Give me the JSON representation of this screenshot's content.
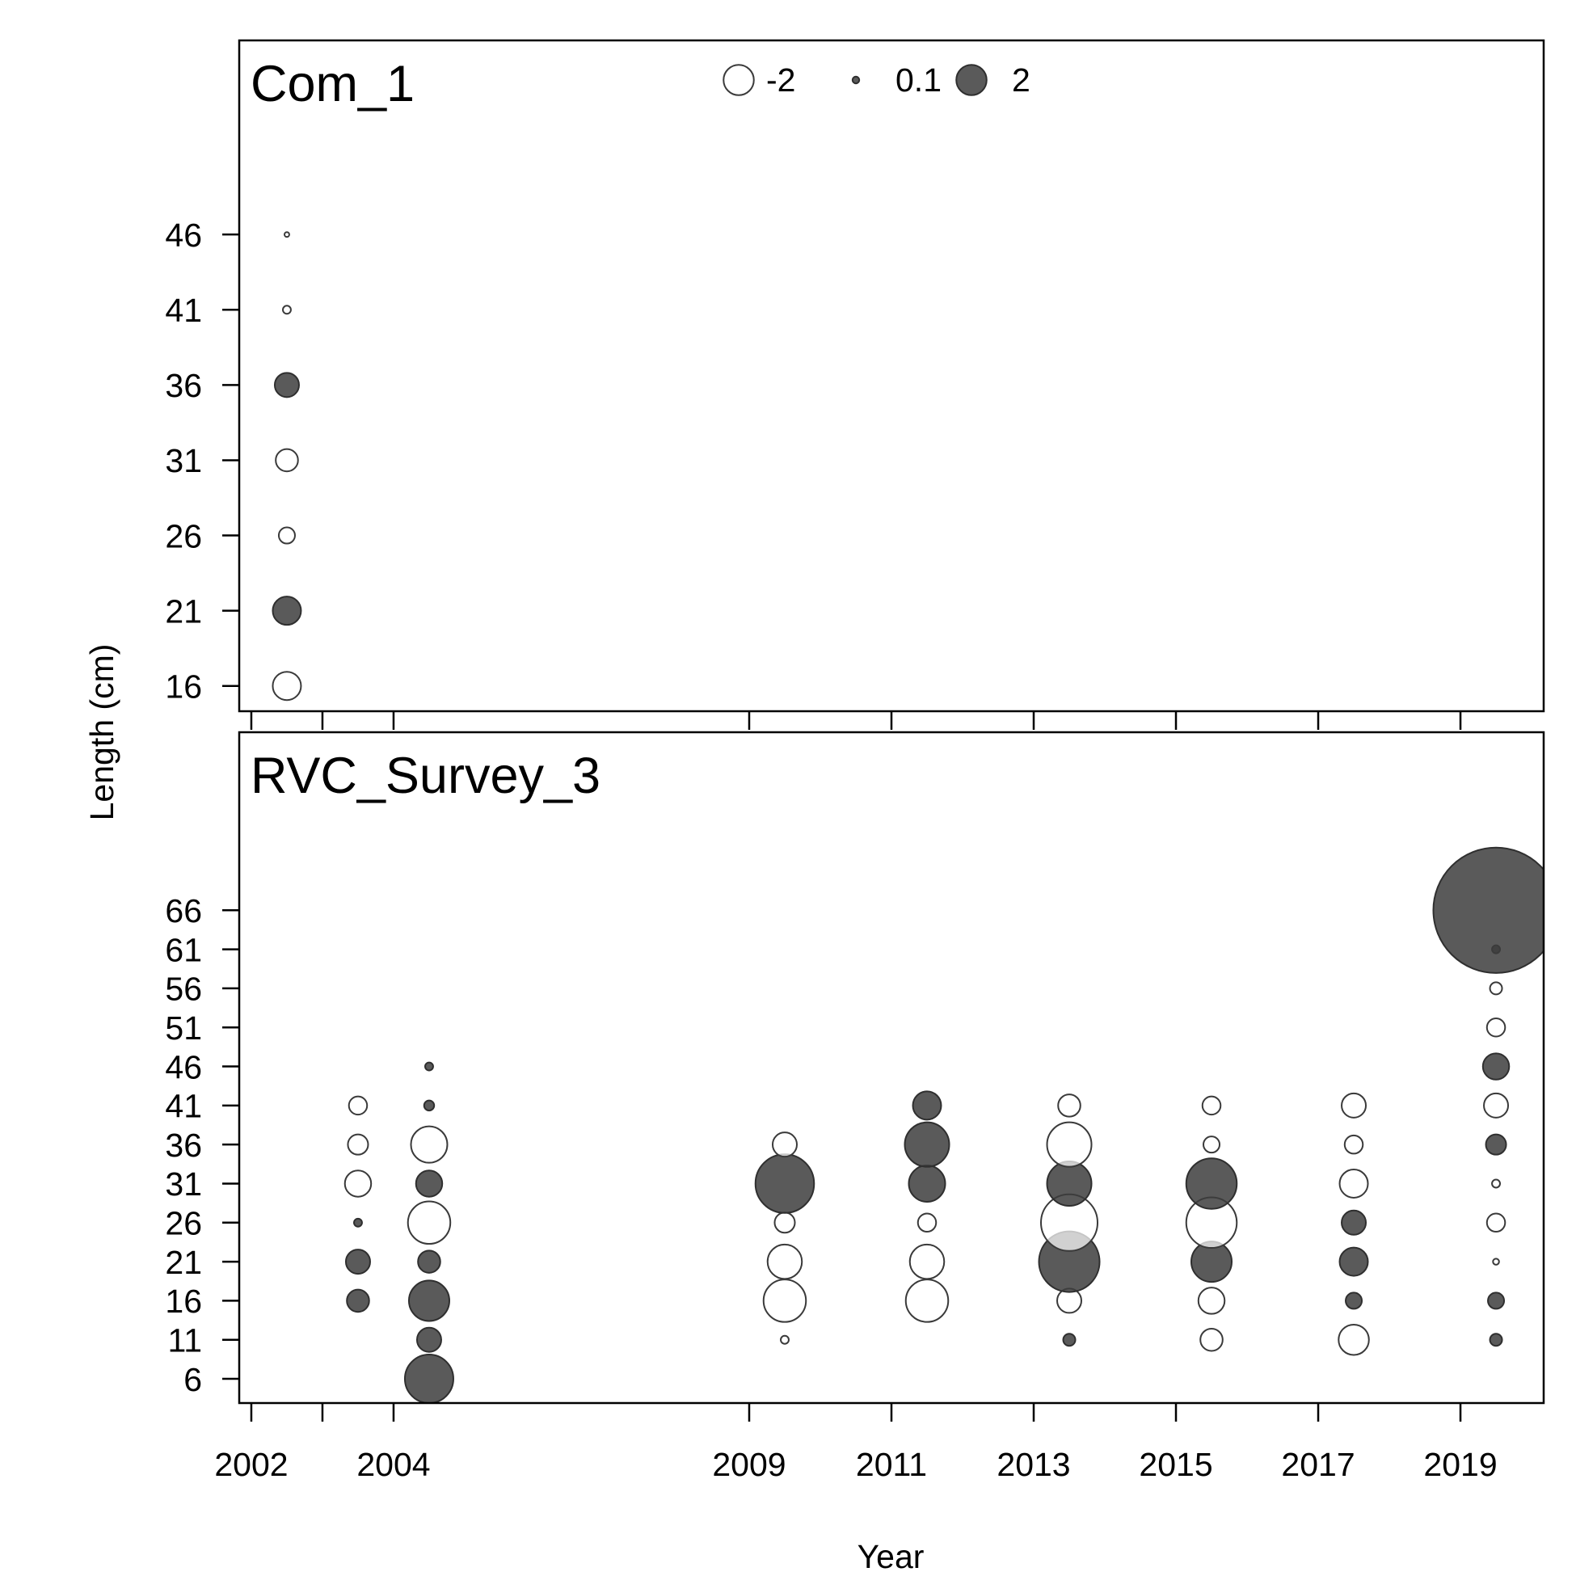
{
  "chart_data": {
    "type": "scatter",
    "subtype": "bubble",
    "xlabel": "Year",
    "ylabel": "Length (cm)",
    "xlim": [
      2001.83,
      2020.17
    ],
    "grid": false,
    "x_ticks": [
      {
        "value": 2002,
        "label": "2002"
      },
      {
        "value": 2003,
        "label": null
      },
      {
        "value": 2004,
        "label": "2004"
      },
      {
        "value": 2009,
        "label": "2009"
      },
      {
        "value": 2011,
        "label": "2011"
      },
      {
        "value": 2013,
        "label": "2013"
      },
      {
        "value": 2015,
        "label": "2015"
      },
      {
        "value": 2017,
        "label": "2017"
      },
      {
        "value": 2019,
        "label": "2019"
      }
    ],
    "legend": {
      "placement": "top-center",
      "entries": [
        {
          "value": -2,
          "label": "-2"
        },
        {
          "value": 0.1,
          "label": "0.1"
        },
        {
          "value": 2,
          "label": "2"
        }
      ]
    },
    "colors": {
      "negative_fill": "#ffffff",
      "positive_fill": "#3d3d3d",
      "frame": "#000000"
    },
    "panels": [
      {
        "title": "Com_1",
        "ylim": [
          14.32,
          58.9
        ],
        "y_ticks": [
          16,
          21,
          26,
          31,
          36,
          41,
          46
        ],
        "points": [
          {
            "x": 2002.5,
            "y": 16,
            "v": -1.74
          },
          {
            "x": 2002.5,
            "y": 21,
            "v": 1.74
          },
          {
            "x": 2002.5,
            "y": 26,
            "v": -0.57
          },
          {
            "x": 2002.5,
            "y": 31,
            "v": -1.08
          },
          {
            "x": 2002.5,
            "y": 36,
            "v": 1.28
          },
          {
            "x": 2002.5,
            "y": 41,
            "v": -0.14
          },
          {
            "x": 2002.5,
            "y": 46,
            "v": -0.05
          }
        ]
      },
      {
        "title": "RVC_Survey_3",
        "ylim": [
          2.9,
          88.8
        ],
        "y_ticks": [
          6,
          11,
          16,
          21,
          26,
          31,
          36,
          41,
          46,
          51,
          56,
          61,
          66
        ],
        "points": [
          {
            "x": 2003.5,
            "y": 16,
            "v": 1.08
          },
          {
            "x": 2003.5,
            "y": 21,
            "v": 1.28
          },
          {
            "x": 2003.5,
            "y": 26,
            "v": 0.14
          },
          {
            "x": 2003.5,
            "y": 31,
            "v": -1.5
          },
          {
            "x": 2003.5,
            "y": 36,
            "v": -0.89
          },
          {
            "x": 2003.5,
            "y": 41,
            "v": -0.72
          },
          {
            "x": 2004.5,
            "y": 6,
            "v": 5.12
          },
          {
            "x": 2004.5,
            "y": 11,
            "v": 1.28
          },
          {
            "x": 2004.5,
            "y": 16,
            "v": 3.56
          },
          {
            "x": 2004.5,
            "y": 21,
            "v": 1.08
          },
          {
            "x": 2004.5,
            "y": 26,
            "v": -3.92
          },
          {
            "x": 2004.5,
            "y": 31,
            "v": 1.5
          },
          {
            "x": 2004.5,
            "y": 36,
            "v": -2.88
          },
          {
            "x": 2004.5,
            "y": 41,
            "v": 0.22
          },
          {
            "x": 2004.5,
            "y": 46,
            "v": 0.14
          },
          {
            "x": 2009.5,
            "y": 11,
            "v": -0.14
          },
          {
            "x": 2009.5,
            "y": 16,
            "v": -3.92
          },
          {
            "x": 2009.5,
            "y": 21,
            "v": -2.57
          },
          {
            "x": 2009.5,
            "y": 26,
            "v": -0.89
          },
          {
            "x": 2009.5,
            "y": 31,
            "v": 7.48
          },
          {
            "x": 2009.5,
            "y": 36,
            "v": -1.28
          },
          {
            "x": 2011.5,
            "y": 16,
            "v": -3.92
          },
          {
            "x": 2011.5,
            "y": 21,
            "v": -2.57
          },
          {
            "x": 2011.5,
            "y": 26,
            "v": -0.72
          },
          {
            "x": 2011.5,
            "y": 31,
            "v": 2.88
          },
          {
            "x": 2011.5,
            "y": 36,
            "v": 4.3
          },
          {
            "x": 2011.5,
            "y": 41,
            "v": 1.74
          },
          {
            "x": 2013.5,
            "y": 11,
            "v": 0.32
          },
          {
            "x": 2013.5,
            "y": 16,
            "v": -1.28
          },
          {
            "x": 2013.5,
            "y": 21,
            "v": 8.0
          },
          {
            "x": 2013.5,
            "y": 26,
            "v": -6.97
          },
          {
            "x": 2013.5,
            "y": 31,
            "v": 4.3
          },
          {
            "x": 2013.5,
            "y": 36,
            "v": -4.3
          },
          {
            "x": 2013.5,
            "y": 41,
            "v": -1.08
          },
          {
            "x": 2015.5,
            "y": 11,
            "v": -1.08
          },
          {
            "x": 2015.5,
            "y": 16,
            "v": -1.5
          },
          {
            "x": 2015.5,
            "y": 21,
            "v": 3.56
          },
          {
            "x": 2015.5,
            "y": 26,
            "v": -5.56
          },
          {
            "x": 2015.5,
            "y": 31,
            "v": 5.56
          },
          {
            "x": 2015.5,
            "y": 36,
            "v": -0.57
          },
          {
            "x": 2015.5,
            "y": 41,
            "v": -0.72
          },
          {
            "x": 2017.5,
            "y": 11,
            "v": -2.0
          },
          {
            "x": 2017.5,
            "y": 16,
            "v": 0.57
          },
          {
            "x": 2017.5,
            "y": 21,
            "v": 1.74
          },
          {
            "x": 2017.5,
            "y": 26,
            "v": 1.28
          },
          {
            "x": 2017.5,
            "y": 31,
            "v": -1.74
          },
          {
            "x": 2017.5,
            "y": 36,
            "v": -0.72
          },
          {
            "x": 2017.5,
            "y": 41,
            "v": -1.28
          },
          {
            "x": 2019.5,
            "y": 11,
            "v": 0.32
          },
          {
            "x": 2019.5,
            "y": 16,
            "v": 0.57
          },
          {
            "x": 2019.5,
            "y": 21,
            "v": -0.08
          },
          {
            "x": 2019.5,
            "y": 26,
            "v": -0.72
          },
          {
            "x": 2019.5,
            "y": 31,
            "v": -0.14
          },
          {
            "x": 2019.5,
            "y": 36,
            "v": 0.89
          },
          {
            "x": 2019.5,
            "y": 41,
            "v": -1.28
          },
          {
            "x": 2019.5,
            "y": 46,
            "v": 1.5
          },
          {
            "x": 2019.5,
            "y": 51,
            "v": -0.72
          },
          {
            "x": 2019.5,
            "y": 56,
            "v": -0.32
          },
          {
            "x": 2019.5,
            "y": 61,
            "v": 0.14
          },
          {
            "x": 2019.5,
            "y": 66,
            "v": 34.2
          }
        ]
      }
    ]
  }
}
